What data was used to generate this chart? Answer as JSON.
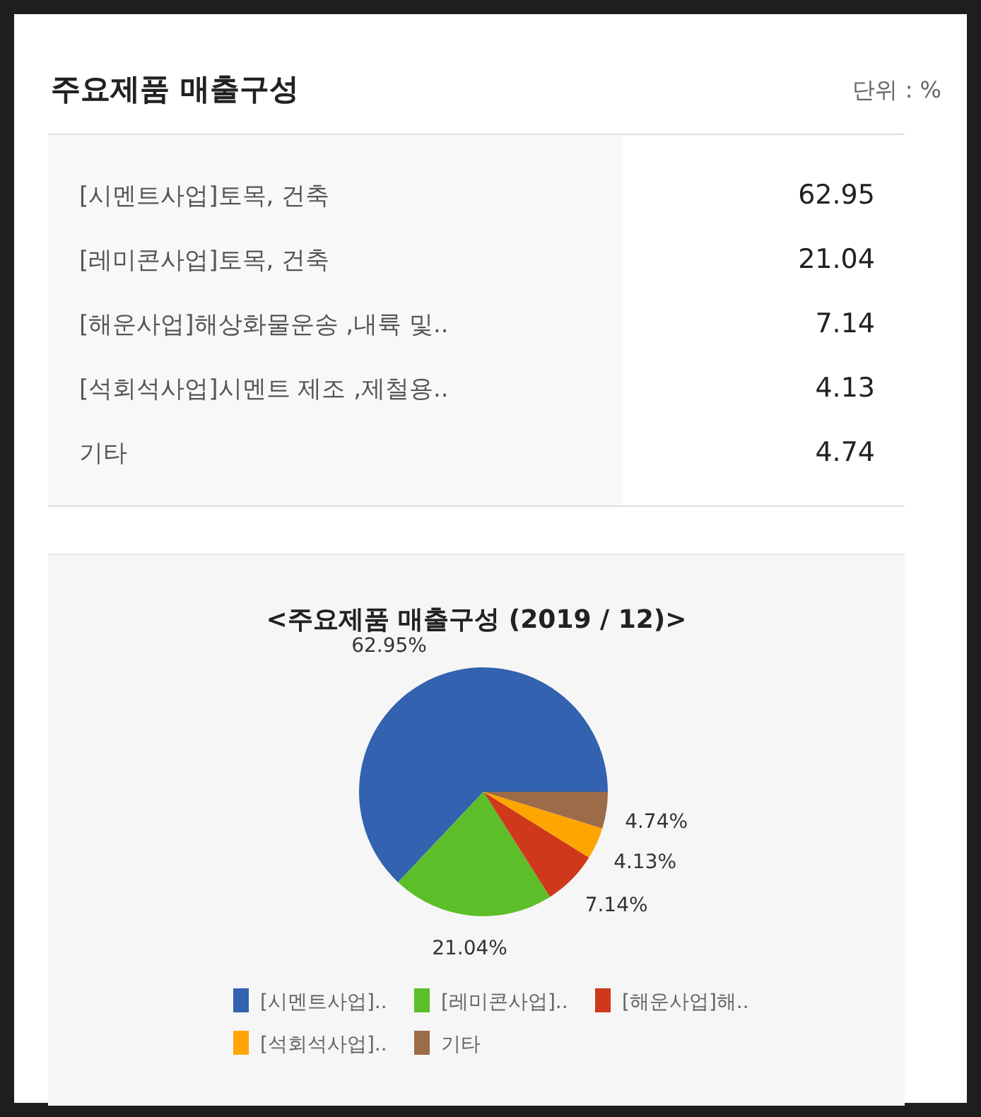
{
  "chart_data": [
    {
      "type": "other",
      "title": "주요제품 매출구성",
      "subtitle": "단위 : %",
      "categories": [
        "[시멘트사업]토목, 건축",
        "[레미콘사업]토목, 건축",
        "[해운사업]해상화물운송 ,내륙 및..",
        "[석회석사업]시멘트 제조 ,제철용..",
        "기타"
      ],
      "values": [
        62.95,
        21.04,
        7.14,
        4.13,
        4.74
      ],
      "value_labels": [
        "62.95",
        "21.04",
        "7.14",
        "4.13",
        "4.74"
      ]
    },
    {
      "type": "pie",
      "title": "<주요제품 매출구성 (2019 / 12)>",
      "categories": [
        "[시멘트사업]..",
        "[레미콘사업]..",
        "[해운사업]해..",
        "[석회석사업]..",
        "기타"
      ],
      "values": [
        62.95,
        21.04,
        7.14,
        4.13,
        4.74
      ],
      "colors": [
        "#3262b0",
        "#5cbf2a",
        "#d0381c",
        "#ffa500",
        "#9c6b47"
      ],
      "value_labels": [
        "62.95%",
        "21.04%",
        "7.14%",
        "4.13%",
        "4.74%"
      ],
      "legend": "bottom"
    }
  ]
}
